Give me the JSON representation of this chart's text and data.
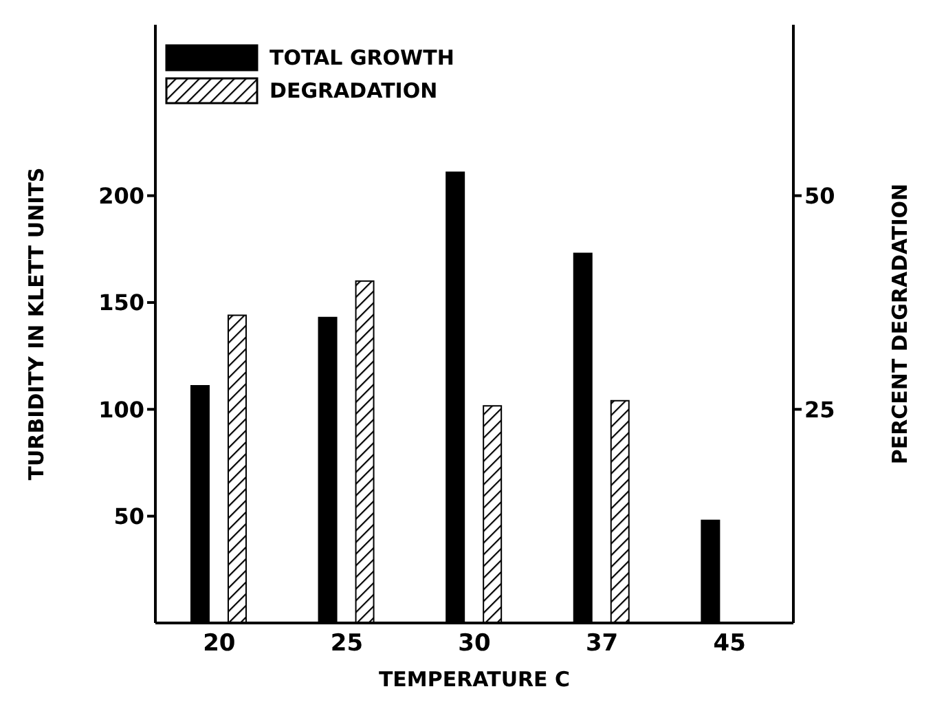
{
  "chart_data": {
    "type": "bar",
    "xlabel": "TEMPERATURE C",
    "ylabel": "TURBIDITY IN KLETT UNITS",
    "y2label": "PERCENT DEGRADATION",
    "categories": [
      "20",
      "25",
      "30",
      "37",
      "45"
    ],
    "series": [
      {
        "name": "TOTAL GROWTH",
        "color": "#000000",
        "values": [
          111,
          143,
          211,
          173,
          48
        ]
      },
      {
        "name": "DEGRADATION",
        "color": "#000000",
        "axis": "y2",
        "values": [
          36,
          40,
          25.4,
          26,
          null
        ]
      }
    ],
    "ylim": [
      0,
      280
    ],
    "yticks": [
      50,
      100,
      150,
      200
    ],
    "y2lim": [
      0,
      70
    ],
    "y2ticks": [
      25,
      50
    ],
    "grid": false,
    "legend": "top left"
  }
}
